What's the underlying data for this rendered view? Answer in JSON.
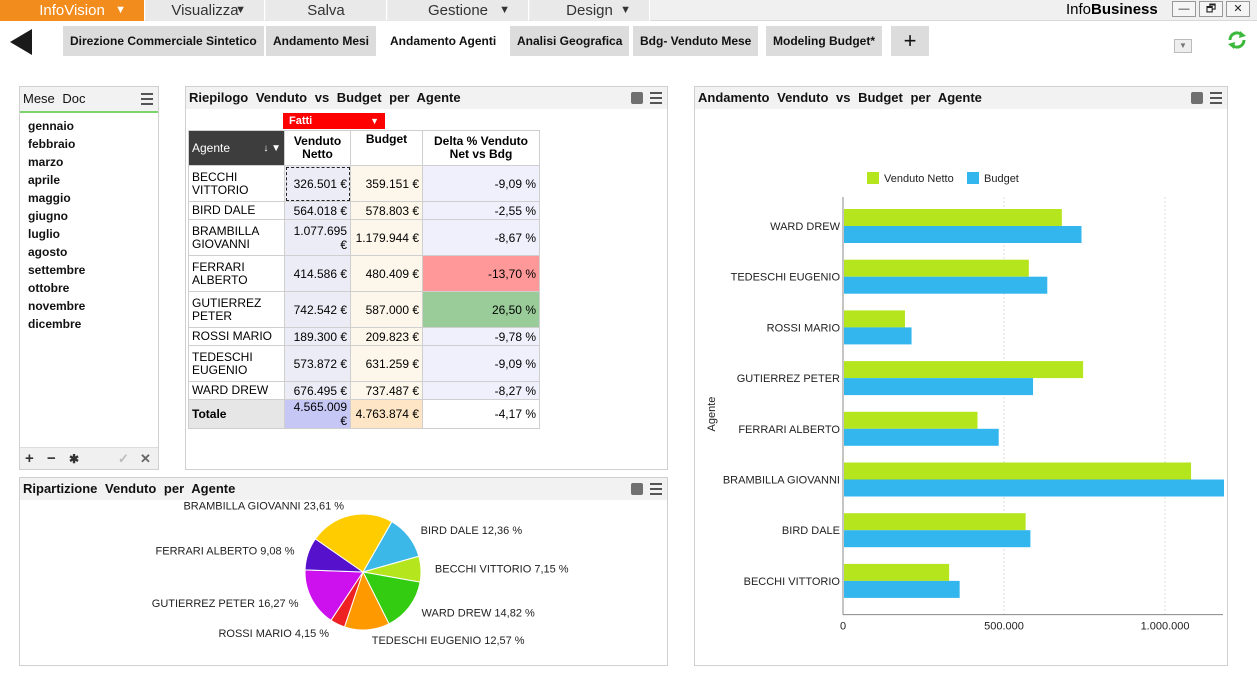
{
  "menubar": {
    "items": [
      {
        "label": "InfoVision",
        "arrow": "▼"
      },
      {
        "label": "Visualizza",
        "arrow": "▼"
      },
      {
        "label": "Salva",
        "arrow": ""
      },
      {
        "label": "Gestione",
        "arrow": "▼"
      },
      {
        "label": "Design",
        "arrow": "▼"
      }
    ],
    "app_name_prefix": "Info",
    "app_name_bold": "Business",
    "window_buttons": {
      "minimize": "—",
      "restore": "🗗",
      "close": "✕"
    }
  },
  "tabs": [
    {
      "label": "Direzione Commerciale Sintetico",
      "active": false
    },
    {
      "label": "Andamento Mesi",
      "active": false
    },
    {
      "label": "Andamento Agenti",
      "active": true
    },
    {
      "label": "Analisi Geografica",
      "active": false
    },
    {
      "label": "Bdg- Venduto Mese",
      "active": false
    },
    {
      "label": "Modeling Budget*",
      "active": false
    }
  ],
  "add_tab_label": "+",
  "filter_panel": {
    "title": "Mese Doc",
    "months": [
      "gennaio",
      "febbraio",
      "marzo",
      "aprile",
      "maggio",
      "giugno",
      "luglio",
      "agosto",
      "settembre",
      "ottobre",
      "novembre",
      "dicembre"
    ],
    "footer": {
      "add": "+",
      "remove": "−",
      "star": "✱",
      "check": "✓",
      "clear": "✕"
    }
  },
  "summary_panel": {
    "title": "Riepilogo  Venduto  vs Budget  per Agente",
    "measure_dropdown": "Fatti",
    "columns": {
      "agent": "Agente",
      "sort_icon": "↓",
      "venduto": "Venduto Netto",
      "budget": "Budget",
      "delta": "Delta % Venduto Net vs Bdg"
    },
    "rows": [
      {
        "agent": "BECCHI VITTORIO",
        "venduto": "326.501 €",
        "budget": "359.151 €",
        "delta": "-9,09 %",
        "status": ""
      },
      {
        "agent": "BIRD DALE",
        "venduto": "564.018 €",
        "budget": "578.803 €",
        "delta": "-2,55 %",
        "status": ""
      },
      {
        "agent": "BRAMBILLA GIOVANNI",
        "venduto": "1.077.695 €",
        "budget": "1.179.944 €",
        "delta": "-8,67 %",
        "status": ""
      },
      {
        "agent": "FERRARI ALBERTO",
        "venduto": "414.586 €",
        "budget": "480.409 €",
        "delta": "-13,70 %",
        "status": "red"
      },
      {
        "agent": "GUTIERREZ PETER",
        "venduto": "742.542 €",
        "budget": "587.000 €",
        "delta": "26,50 %",
        "status": "green"
      },
      {
        "agent": "ROSSI MARIO",
        "venduto": "189.300 €",
        "budget": "209.823 €",
        "delta": "-9,78 %",
        "status": ""
      },
      {
        "agent": "TEDESCHI EUGENIO",
        "venduto": "573.872 €",
        "budget": "631.259 €",
        "delta": "-9,09 %",
        "status": ""
      },
      {
        "agent": "WARD DREW",
        "venduto": "676.495 €",
        "budget": "737.487 €",
        "delta": "-8,27 %",
        "status": ""
      }
    ],
    "total": {
      "label": "Totale",
      "venduto": "4.565.009 €",
      "budget": "4.763.874 €",
      "delta": "-4,17 %"
    }
  },
  "pie_panel": {
    "title": "Ripartizione  Venduto  per Agente"
  },
  "bar_panel": {
    "title": "Andamento  Venduto  vs Budget  per Agente"
  },
  "chart_data": [
    {
      "type": "pie",
      "title": "",
      "slices": [
        {
          "label": "BIRD DALE 12,36 %",
          "value": 12.36,
          "color": "#3bb8e8"
        },
        {
          "label": "BECCHI VITTORIO 7,15 %",
          "value": 7.15,
          "color": "#b5e51d"
        },
        {
          "label": "WARD DREW 14,82 %",
          "value": 14.82,
          "color": "#33cc11"
        },
        {
          "label": "TEDESCHI EUGENIO 12,57 %",
          "value": 12.57,
          "color": "#ff9900"
        },
        {
          "label": "ROSSI MARIO 4,15 %",
          "value": 4.15,
          "color": "#ee2222"
        },
        {
          "label": "GUTIERREZ PETER 16,27 %",
          "value": 16.27,
          "color": "#cc11ee"
        },
        {
          "label": "FERRARI ALBERTO 9,08 %",
          "value": 9.08,
          "color": "#5511cc"
        },
        {
          "label": "BRAMBILLA GIOVANNI 23,61 %",
          "value": 23.61,
          "color": "#ffcc00"
        }
      ]
    },
    {
      "type": "bar",
      "orientation": "horizontal",
      "title": "",
      "ylabel": "Agente",
      "xlabel": "",
      "categories": [
        "WARD DREW",
        "TEDESCHI EUGENIO",
        "ROSSI MARIO",
        "GUTIERREZ PETER",
        "FERRARI ALBERTO",
        "BRAMBILLA GIOVANNI",
        "BIRD DALE",
        "BECCHI VITTORIO"
      ],
      "series": [
        {
          "name": "Venduto Netto",
          "color": "#b5e51d",
          "values": [
            676495,
            573872,
            189300,
            742542,
            414586,
            1077695,
            564018,
            326501
          ]
        },
        {
          "name": "Budget",
          "color": "#33b5ee",
          "values": [
            737487,
            631259,
            209823,
            587000,
            480409,
            1179944,
            578803,
            359151
          ]
        }
      ],
      "xlim": [
        0,
        1180000
      ],
      "xticks": [
        0,
        500000,
        1000000
      ],
      "xtick_labels": [
        "0",
        "500.000",
        "1.000.000"
      ],
      "legend": "top",
      "grid": true
    }
  ]
}
